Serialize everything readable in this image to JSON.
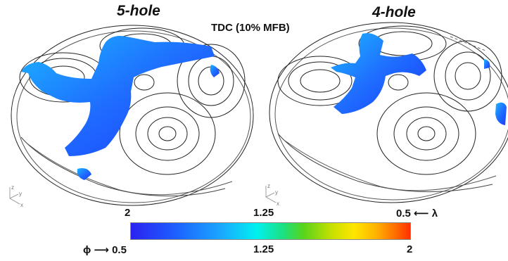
{
  "titles": {
    "left": "5-hole",
    "right": "4-hole",
    "center": "TDC (10% MFB)"
  },
  "colorbar": {
    "lambda_labels": {
      "left": "2",
      "mid": "1.25",
      "right": "0.5 ⟵ λ"
    },
    "phi_labels": {
      "left": "ϕ ⟶ 0.5",
      "mid": "1.25",
      "right": "2"
    },
    "colors": [
      "#2b22f0",
      "#1aa6ff",
      "#00f0f0",
      "#5ad41a",
      "#ffe600",
      "#ff6a00",
      "#ff3000"
    ]
  },
  "axis_triad": {
    "z": "z",
    "y": "y",
    "x": "x"
  },
  "colors": {
    "outline": "#222222",
    "flame_dark": "#1a3cff",
    "flame_mid": "#1f7dff",
    "flame_light": "#1bb6ff"
  }
}
